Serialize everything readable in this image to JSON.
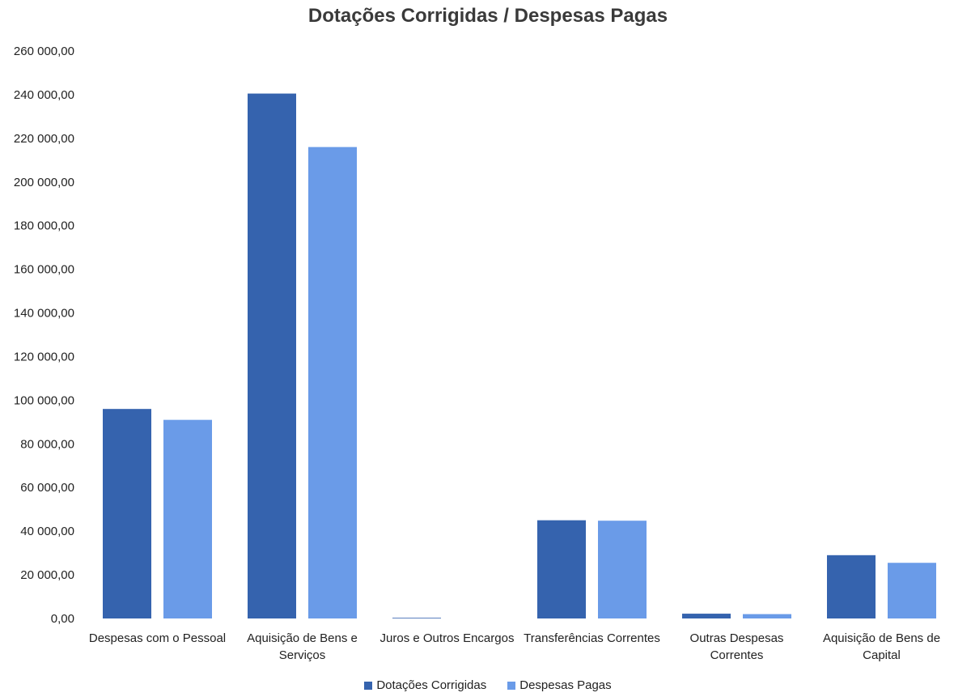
{
  "chart_data": {
    "type": "bar",
    "title": "Dotações Corrigidas / Despesas Pagas",
    "xlabel": "",
    "ylabel": "",
    "categories": [
      [
        "Despesas com o Pessoal"
      ],
      [
        "Aquisição de Bens e",
        "Serviços"
      ],
      [
        "Juros e Outros Encargos"
      ],
      [
        "Transferências Correntes"
      ],
      [
        "Outras Despesas",
        "Correntes"
      ],
      [
        "Aquisição de Bens de",
        "Capital"
      ]
    ],
    "series": [
      {
        "name": "Dotações Corrigidas",
        "color": "#3563ae",
        "values": [
          96000,
          240500,
          300,
          45000,
          2200,
          29000
        ]
      },
      {
        "name": "Despesas Pagas",
        "color": "#6a9be8",
        "values": [
          91000,
          216000,
          0,
          44800,
          2000,
          25500
        ]
      }
    ],
    "ylim": [
      0,
      260000
    ],
    "y_ticks": [
      "0,00",
      "20 000,00",
      "40 000,00",
      "60 000,00",
      "80 000,00",
      "100 000,00",
      "120 000,00",
      "140 000,00",
      "160 000,00",
      "180 000,00",
      "200 000,00",
      "220 000,00",
      "240 000,00",
      "260 000,00"
    ],
    "grid": false,
    "legend": "bottom"
  }
}
